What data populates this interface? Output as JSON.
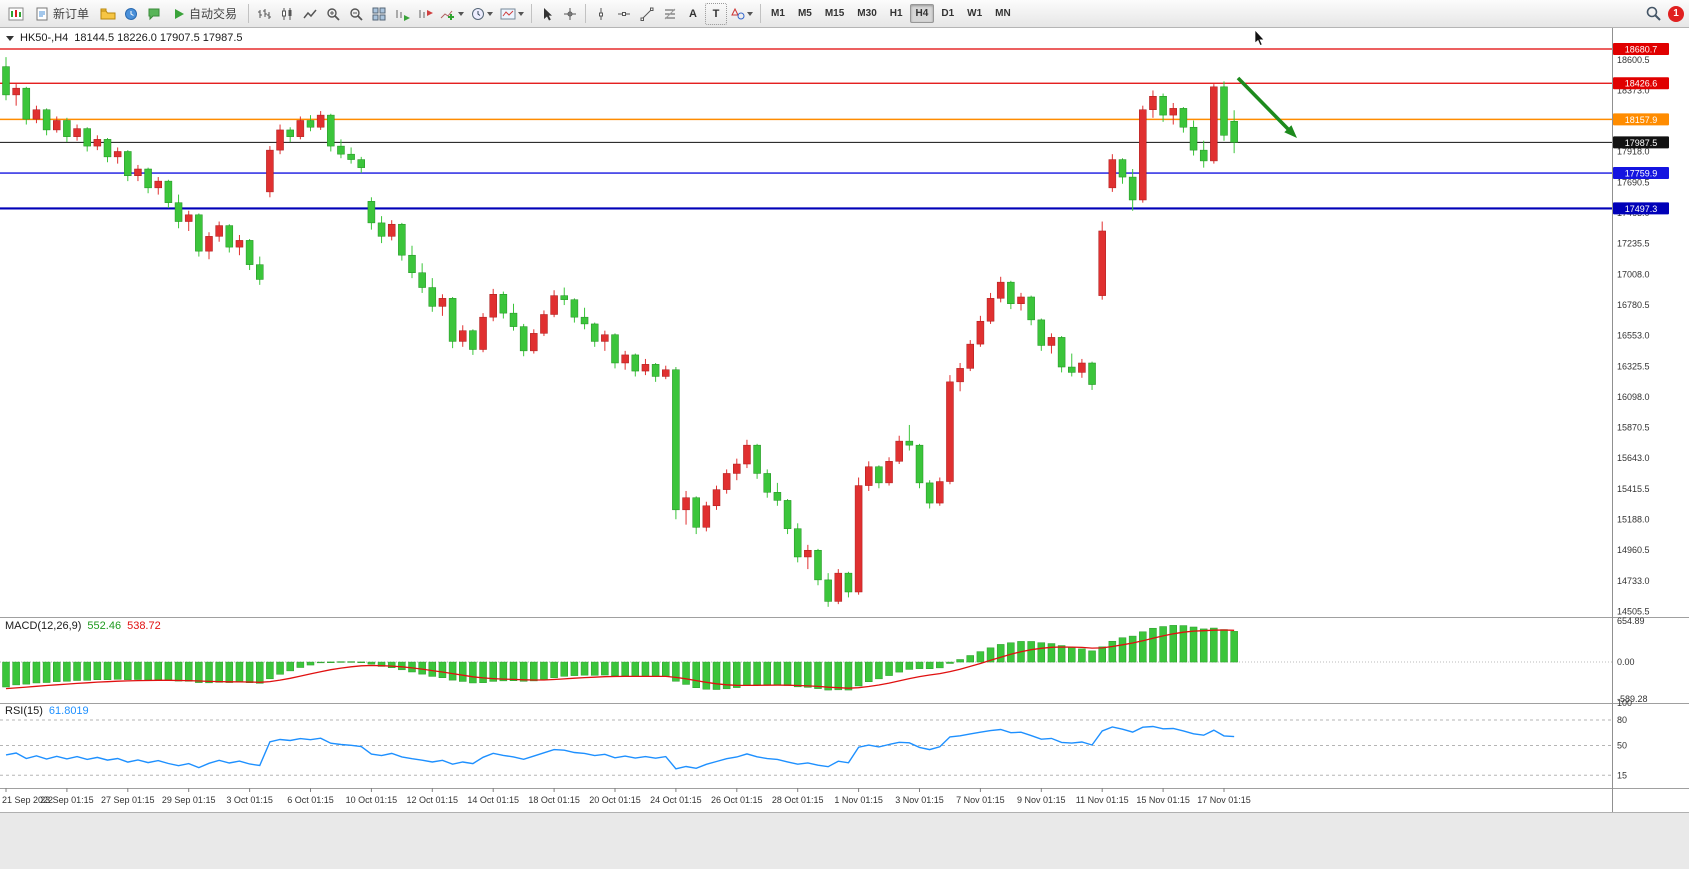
{
  "toolbar": {
    "new_order_label": "新订单",
    "auto_trading_label": "自动交易",
    "text_tool_glyph": "A",
    "label_tool_glyph": "T",
    "timeframes": [
      "M1",
      "M5",
      "M15",
      "M30",
      "H1",
      "H4",
      "D1",
      "W1",
      "MN"
    ],
    "active_timeframe": "H4",
    "notification_count": "1"
  },
  "chart": {
    "symbol_period": "HK50-,H4",
    "ohlc": "18144.5 18226.0 17907.5 17987.5",
    "up_color": "#e03030",
    "down_color": "#3bc53b",
    "levels": [
      {
        "price": 18680.7,
        "label": "18680.7",
        "color": "#e00000",
        "width": 1.2
      },
      {
        "price": 18426.6,
        "label": "18426.6",
        "color": "#e00000",
        "width": 1.2
      },
      {
        "price": 18157.9,
        "label": "18157.9",
        "color": "#ff8c00",
        "width": 1.5
      },
      {
        "price": 17987.5,
        "label": "17987.5",
        "color": "#111111",
        "width": 1
      },
      {
        "price": 17759.9,
        "label": "17759.9",
        "color": "#1414e0",
        "width": 1.4
      },
      {
        "price": 17497.3,
        "label": "17497.3",
        "color": "#0000b8",
        "width": 2.2
      }
    ],
    "y_axis_labels": [
      18600.5,
      18373.0,
      18145.5,
      17918.0,
      17690.5,
      17463.0,
      17235.5,
      17008.0,
      16780.5,
      16553.0,
      16325.5,
      16098.0,
      15870.5,
      15643.0,
      15415.5,
      15188.0,
      14960.5,
      14733.0,
      14505.5
    ]
  },
  "chart_data": {
    "type": "candlestick",
    "symbol": "HK50-",
    "period": "H4",
    "title": "HK50-,H4",
    "up_means": "red-up green-down",
    "y_range": {
      "top_line_price": 18680.7,
      "bottom_approx": 14505.5
    },
    "x_labels": [
      {
        "i": 0,
        "t": "21 Sep 2022"
      },
      {
        "i": 6,
        "t": "23 Sep 01:15"
      },
      {
        "i": 12,
        "t": "27 Sep 01:15"
      },
      {
        "i": 18,
        "t": "29 Sep 01:15"
      },
      {
        "i": 24,
        "t": "3 Oct 01:15"
      },
      {
        "i": 30,
        "t": "6 Oct 01:15"
      },
      {
        "i": 36,
        "t": "10 Oct 01:15"
      },
      {
        "i": 42,
        "t": "12 Oct 01:15"
      },
      {
        "i": 48,
        "t": "14 Oct 01:15"
      },
      {
        "i": 54,
        "t": "18 Oct 01:15"
      },
      {
        "i": 60,
        "t": "20 Oct 01:15"
      },
      {
        "i": 66,
        "t": "24 Oct 01:15"
      },
      {
        "i": 72,
        "t": "26 Oct 01:15"
      },
      {
        "i": 78,
        "t": "28 Oct 01:15"
      },
      {
        "i": 84,
        "t": "1 Nov 01:15"
      },
      {
        "i": 90,
        "t": "3 Nov 01:15"
      },
      {
        "i": 96,
        "t": "7 Nov 01:15"
      },
      {
        "i": 102,
        "t": "9 Nov 01:15"
      },
      {
        "i": 108,
        "t": "11 Nov 01:15"
      },
      {
        "i": 114,
        "t": "15 Nov 01:15"
      },
      {
        "i": 120,
        "t": "17 Nov 01:15"
      }
    ],
    "candles": [
      [
        18550,
        18620,
        18300,
        18340
      ],
      [
        18340,
        18420,
        18260,
        18390
      ],
      [
        18390,
        18400,
        18120,
        18160
      ],
      [
        18160,
        18260,
        18130,
        18230
      ],
      [
        18230,
        18240,
        18040,
        18080
      ],
      [
        18080,
        18180,
        18060,
        18150
      ],
      [
        18150,
        18170,
        17990,
        18030
      ],
      [
        18030,
        18120,
        18000,
        18090
      ],
      [
        18090,
        18100,
        17920,
        17960
      ],
      [
        17960,
        18040,
        17930,
        18010
      ],
      [
        18010,
        18020,
        17840,
        17880
      ],
      [
        17880,
        17950,
        17830,
        17920
      ],
      [
        17920,
        17930,
        17700,
        17740
      ],
      [
        17740,
        17820,
        17700,
        17790
      ],
      [
        17790,
        17800,
        17610,
        17650
      ],
      [
        17650,
        17730,
        17600,
        17700
      ],
      [
        17700,
        17710,
        17500,
        17540
      ],
      [
        17540,
        17600,
        17350,
        17400
      ],
      [
        17400,
        17480,
        17330,
        17450
      ],
      [
        17450,
        17460,
        17140,
        17180
      ],
      [
        17180,
        17320,
        17120,
        17290
      ],
      [
        17290,
        17400,
        17250,
        17370
      ],
      [
        17370,
        17380,
        17170,
        17210
      ],
      [
        17210,
        17300,
        17150,
        17260
      ],
      [
        17260,
        17270,
        17040,
        17080
      ],
      [
        17080,
        17140,
        16930,
        16970
      ],
      [
        17620,
        17960,
        17580,
        17930
      ],
      [
        17930,
        18120,
        17900,
        18080
      ],
      [
        18080,
        18100,
        17990,
        18030
      ],
      [
        18030,
        18180,
        18010,
        18150
      ],
      [
        18150,
        18190,
        18070,
        18100
      ],
      [
        18100,
        18220,
        18080,
        18190
      ],
      [
        18190,
        18200,
        17920,
        17960
      ],
      [
        17960,
        18010,
        17870,
        17900
      ],
      [
        17900,
        17950,
        17830,
        17860
      ],
      [
        17860,
        17880,
        17760,
        17800
      ],
      [
        17550,
        17580,
        17340,
        17390
      ],
      [
        17390,
        17440,
        17240,
        17290
      ],
      [
        17290,
        17410,
        17260,
        17380
      ],
      [
        17380,
        17390,
        17110,
        17150
      ],
      [
        17150,
        17220,
        16980,
        17020
      ],
      [
        17020,
        17090,
        16870,
        16910
      ],
      [
        16910,
        16980,
        16730,
        16770
      ],
      [
        16770,
        16860,
        16700,
        16830
      ],
      [
        16830,
        16840,
        16460,
        16510
      ],
      [
        16510,
        16630,
        16470,
        16590
      ],
      [
        16590,
        16600,
        16410,
        16450
      ],
      [
        16450,
        16720,
        16430,
        16690
      ],
      [
        16690,
        16900,
        16660,
        16860
      ],
      [
        16860,
        16880,
        16680,
        16720
      ],
      [
        16720,
        16790,
        16590,
        16620
      ],
      [
        16620,
        16640,
        16400,
        16440
      ],
      [
        16440,
        16600,
        16420,
        16570
      ],
      [
        16570,
        16740,
        16550,
        16710
      ],
      [
        16710,
        16890,
        16690,
        16850
      ],
      [
        16850,
        16910,
        16780,
        16820
      ],
      [
        16820,
        16830,
        16650,
        16690
      ],
      [
        16690,
        16760,
        16600,
        16640
      ],
      [
        16640,
        16650,
        16470,
        16510
      ],
      [
        16510,
        16590,
        16440,
        16560
      ],
      [
        16560,
        16570,
        16310,
        16350
      ],
      [
        16350,
        16440,
        16300,
        16410
      ],
      [
        16410,
        16420,
        16250,
        16290
      ],
      [
        16290,
        16380,
        16260,
        16340
      ],
      [
        16340,
        16350,
        16210,
        16250
      ],
      [
        16250,
        16330,
        16230,
        16300
      ],
      [
        16300,
        16320,
        15190,
        15260
      ],
      [
        15260,
        15400,
        15150,
        15350
      ],
      [
        15350,
        15360,
        15080,
        15130
      ],
      [
        15130,
        15320,
        15100,
        15290
      ],
      [
        15290,
        15440,
        15260,
        15410
      ],
      [
        15410,
        15560,
        15380,
        15530
      ],
      [
        15530,
        15640,
        15480,
        15600
      ],
      [
        15600,
        15780,
        15570,
        15740
      ],
      [
        15740,
        15750,
        15490,
        15530
      ],
      [
        15530,
        15560,
        15350,
        15390
      ],
      [
        15390,
        15460,
        15290,
        15330
      ],
      [
        15330,
        15340,
        15080,
        15120
      ],
      [
        15120,
        15160,
        14870,
        14910
      ],
      [
        14910,
        15000,
        14820,
        14960
      ],
      [
        14960,
        14970,
        14700,
        14740
      ],
      [
        14740,
        14790,
        14540,
        14580
      ],
      [
        14580,
        14820,
        14560,
        14790
      ],
      [
        14790,
        14800,
        14610,
        14650
      ],
      [
        14650,
        15500,
        14630,
        15440
      ],
      [
        15440,
        15620,
        15400,
        15580
      ],
      [
        15580,
        15590,
        15420,
        15460
      ],
      [
        15460,
        15650,
        15440,
        15620
      ],
      [
        15620,
        15810,
        15600,
        15770
      ],
      [
        15770,
        15890,
        15700,
        15740
      ],
      [
        15740,
        15750,
        15420,
        15460
      ],
      [
        15460,
        15480,
        15270,
        15310
      ],
      [
        15310,
        15500,
        15290,
        15470
      ],
      [
        15470,
        16260,
        15450,
        16210
      ],
      [
        16210,
        16350,
        16140,
        16310
      ],
      [
        16310,
        16520,
        16290,
        16490
      ],
      [
        16490,
        16700,
        16470,
        16660
      ],
      [
        16660,
        16870,
        16640,
        16830
      ],
      [
        16830,
        16990,
        16800,
        16950
      ],
      [
        16950,
        16960,
        16750,
        16790
      ],
      [
        16790,
        16870,
        16740,
        16840
      ],
      [
        16840,
        16850,
        16630,
        16670
      ],
      [
        16670,
        16680,
        16440,
        16480
      ],
      [
        16480,
        16570,
        16420,
        16540
      ],
      [
        16540,
        16550,
        16280,
        16320
      ],
      [
        16320,
        16420,
        16250,
        16280
      ],
      [
        16280,
        16380,
        16240,
        16350
      ],
      [
        16350,
        16360,
        16150,
        16190
      ],
      [
        16850,
        17400,
        16820,
        17330
      ],
      [
        17650,
        17900,
        17620,
        17860
      ],
      [
        17860,
        17870,
        17680,
        17730
      ],
      [
        17730,
        17790,
        17480,
        17560
      ],
      [
        17560,
        18260,
        17540,
        18230
      ],
      [
        18230,
        18373,
        18170,
        18330
      ],
      [
        18330,
        18350,
        18140,
        18190
      ],
      [
        18190,
        18280,
        18120,
        18240
      ],
      [
        18240,
        18250,
        18060,
        18100
      ],
      [
        18100,
        18150,
        17890,
        17930
      ],
      [
        17930,
        18000,
        17800,
        17850
      ],
      [
        17850,
        18420,
        17830,
        18400
      ],
      [
        18400,
        18440,
        18000,
        18040
      ],
      [
        18144.5,
        18226,
        17907.5,
        17987.5
      ]
    ]
  },
  "macd": {
    "name": "MACD(12,26,9)",
    "value": "552.46",
    "signal_value": "538.72",
    "params": {
      "fast": 12,
      "slow": 26,
      "signal": 9
    },
    "axis": [
      654.89,
      0,
      -589.28
    ],
    "histogram_color": "#3bc53b",
    "signal_color": "#e01010"
  },
  "rsi": {
    "name": "RSI(15)",
    "value": "61.8019",
    "period": 15,
    "axis": [
      100,
      80,
      50,
      15
    ],
    "levels": [
      80,
      50,
      15
    ],
    "line_color": "#1e90ff"
  },
  "annotations": {
    "trend_arrow": {
      "color": "#1d8a1d",
      "direction": "down-right"
    }
  }
}
